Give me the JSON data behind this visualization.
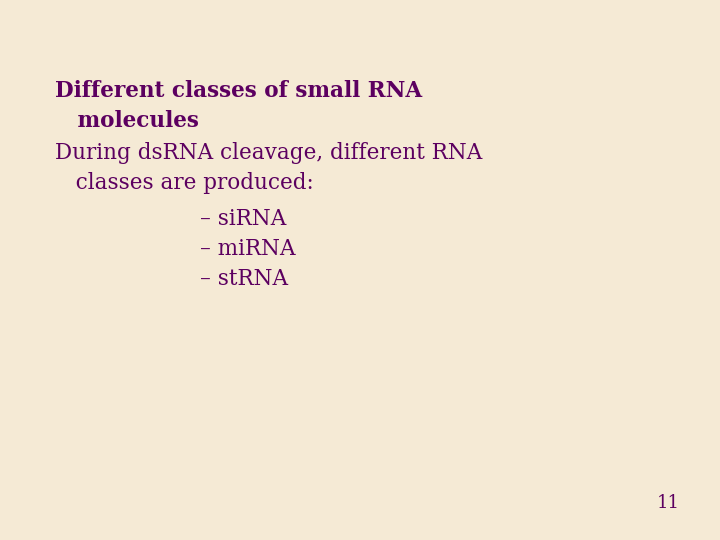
{
  "background_color": "#f5ead5",
  "text_color": "#5c0060",
  "title_line1": "Different classes of small RNA",
  "title_line2": "   molecules",
  "body_line1": "During dsRNA cleavage, different RNA",
  "body_line2": "   classes are produced:",
  "bullet1": "– siRNA",
  "bullet2": "– miRNA",
  "bullet3": "– stRNA",
  "page_number": "11",
  "title_fontsize": 15.5,
  "body_fontsize": 15.5,
  "bullet_fontsize": 15.5,
  "page_fontsize": 13
}
